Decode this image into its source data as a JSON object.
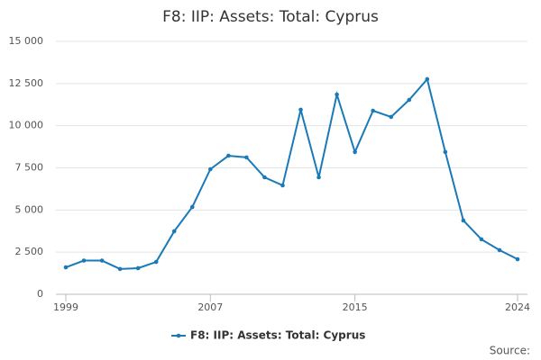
{
  "chart_data": {
    "type": "line",
    "title": "F8: IIP: Assets: Total: Cyprus",
    "x": [
      1999,
      2000,
      2001,
      2002,
      2003,
      2004,
      2005,
      2006,
      2007,
      2008,
      2009,
      2010,
      2011,
      2012,
      2013,
      2014,
      2015,
      2016,
      2017,
      2018,
      2019,
      2020,
      2021,
      2022,
      2023,
      2024
    ],
    "series": [
      {
        "name": "F8: IIP: Assets: Total: Cyprus",
        "color": "#1a7ab8",
        "values": [
          1600,
          2000,
          2000,
          1500,
          1550,
          1920,
          3740,
          5180,
          7420,
          8220,
          8120,
          6940,
          6460,
          10950,
          6940,
          11850,
          8440,
          10890,
          10520,
          11530,
          12760,
          8440,
          4380,
          3260,
          2620,
          2080
        ]
      }
    ],
    "xlim": [
      1999,
      2024
    ],
    "xticks": [
      1999,
      2007,
      2015,
      2024
    ],
    "ylim": [
      0,
      15000
    ],
    "yticks": [
      0,
      {
        "value": 2500,
        "label": "2 500"
      },
      {
        "value": 5000,
        "label": "5 000"
      },
      {
        "value": 7500,
        "label": "7 500"
      },
      {
        "value": 10000,
        "label": "10 000"
      },
      {
        "value": 12500,
        "label": "12 500"
      },
      {
        "value": 15000,
        "label": "15 000"
      }
    ],
    "grid": true,
    "legend": "bottom",
    "source": "Source:"
  }
}
